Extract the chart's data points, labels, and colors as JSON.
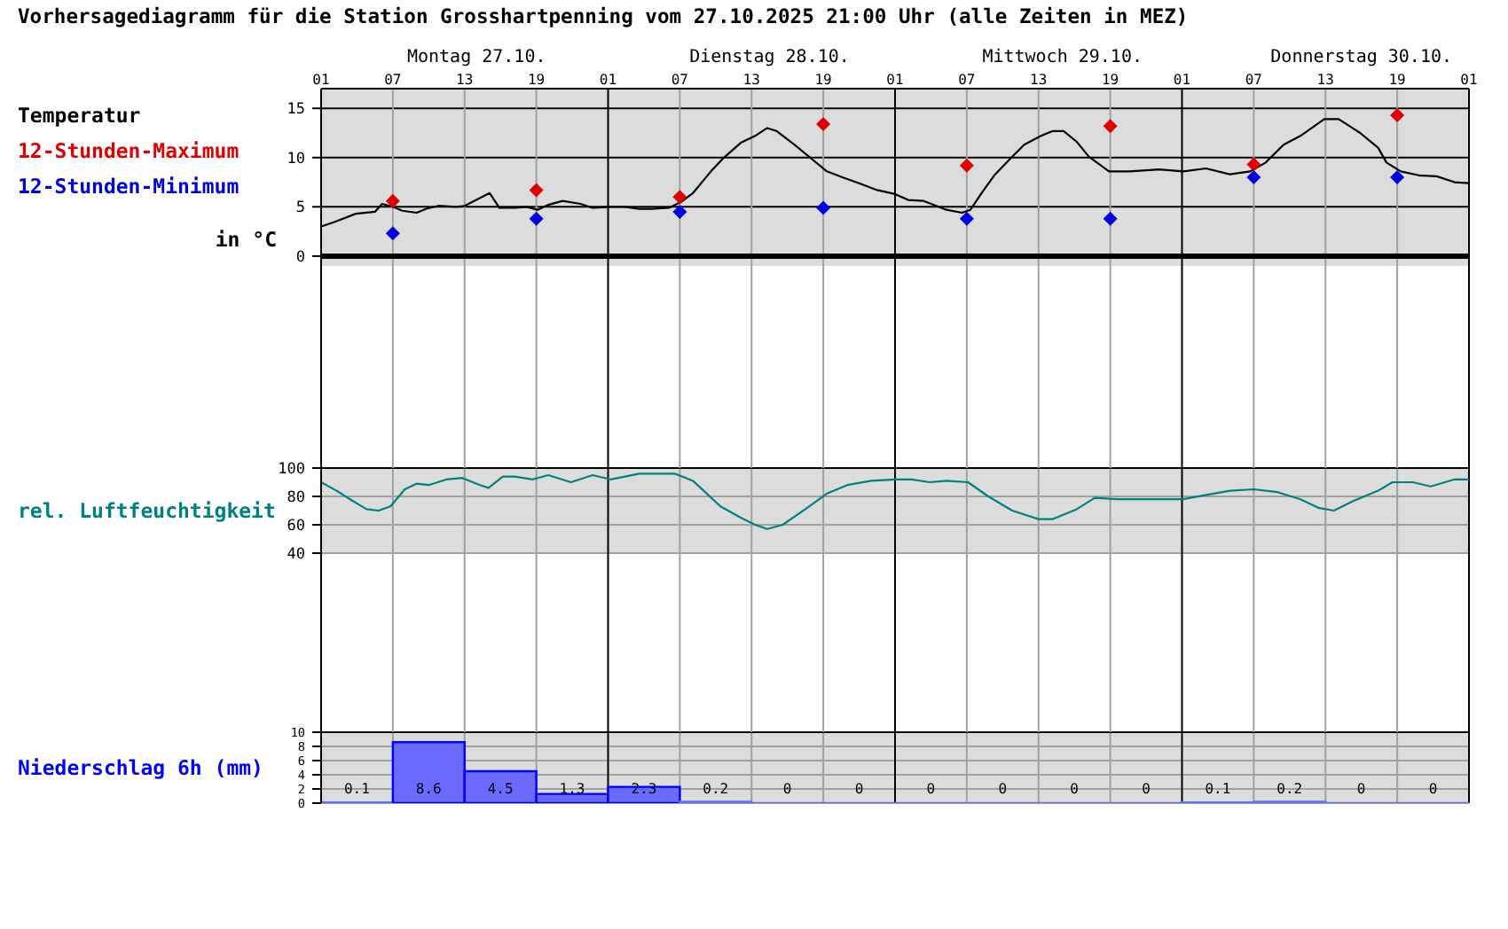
{
  "chart_data": [
    {
      "type": "line",
      "title": "Vorhersagediagramm für die Station Grosshartpenning vom 27.10.2025 21:00 Uhr (alle Zeiten in MEZ)",
      "ylabel": "in °C",
      "xlim": [
        "2025-10-27T01:00",
        "2025-10-31T01:00"
      ],
      "xticks": [
        {
          "value": "2025-10-27T01:00",
          "label": "01"
        },
        {
          "value": "2025-10-27T07:00",
          "label": "07"
        },
        {
          "value": "2025-10-27T13:00",
          "label": "13"
        },
        {
          "value": "2025-10-27T19:00",
          "label": "19"
        },
        {
          "value": "2025-10-28T01:00",
          "label": "01"
        },
        {
          "value": "2025-10-28T07:00",
          "label": "07"
        },
        {
          "value": "2025-10-28T13:00",
          "label": "13"
        },
        {
          "value": "2025-10-28T19:00",
          "label": "19"
        },
        {
          "value": "2025-10-29T01:00",
          "label": "01"
        },
        {
          "value": "2025-10-29T07:00",
          "label": "07"
        },
        {
          "value": "2025-10-29T13:00",
          "label": "13"
        },
        {
          "value": "2025-10-29T19:00",
          "label": "19"
        },
        {
          "value": "2025-10-30T01:00",
          "label": "01"
        },
        {
          "value": "2025-10-30T07:00",
          "label": "07"
        },
        {
          "value": "2025-10-30T13:00",
          "label": "13"
        },
        {
          "value": "2025-10-30T19:00",
          "label": "19"
        },
        {
          "value": "2025-10-31T01:00",
          "label": "01"
        }
      ],
      "x2lim": [
        "2025-10-27T01:00",
        "2025-10-31T01:00"
      ],
      "x2ticks": [
        {
          "value": "2025-10-27T14:00",
          "label": "Montag 27.10."
        },
        {
          "value": "2025-10-28T14:30",
          "label": "Dienstag 28.10."
        },
        {
          "value": "2025-10-29T15:00",
          "label": "Mittwoch 29.10."
        },
        {
          "value": "2025-10-30T16:00",
          "label": "Donnerstag 30.10."
        }
      ],
      "ylim": [
        -1,
        17
      ],
      "yticks": [
        0,
        5,
        10,
        15
      ],
      "grid": true,
      "legend": "left",
      "ref_lines": [
        {
          "axis": "y",
          "value": 0,
          "color": "#000000"
        }
      ],
      "series": [
        {
          "name": "Temperatur",
          "color": "#000000",
          "x": [
            "2025-10-27T01:00",
            "2025-10-27T02:12",
            "2025-10-27T03:54",
            "2025-10-27T05:30",
            "2025-10-27T06:06",
            "2025-10-27T07:00",
            "2025-10-27T07:48",
            "2025-10-27T09:00",
            "2025-10-27T09:48",
            "2025-10-27T10:48",
            "2025-10-27T12:18",
            "2025-10-27T13:00",
            "2025-10-27T14:18",
            "2025-10-27T15:06",
            "2025-10-27T15:54",
            "2025-10-27T17:12",
            "2025-10-27T18:12",
            "2025-10-27T19:06",
            "2025-10-27T20:00",
            "2025-10-27T21:12",
            "2025-10-27T22:42",
            "2025-10-27T23:42",
            "2025-10-28T01:12",
            "2025-10-28T02:24",
            "2025-10-28T03:36",
            "2025-10-28T04:36",
            "2025-10-28T06:06",
            "2025-10-28T07:06",
            "2025-10-28T08:06",
            "2025-10-28T09:36",
            "2025-10-28T10:36",
            "2025-10-28T12:06",
            "2025-10-28T13:18",
            "2025-10-28T14:18",
            "2025-10-28T15:06",
            "2025-10-28T16:36",
            "2025-10-28T18:06",
            "2025-10-28T19:18",
            "2025-10-28T20:36",
            "2025-10-28T22:00",
            "2025-10-28T23:30",
            "2025-10-29T01:00",
            "2025-10-29T02:06",
            "2025-10-29T03:24",
            "2025-10-29T05:18",
            "2025-10-29T06:36",
            "2025-10-29T07:18",
            "2025-10-29T08:18",
            "2025-10-29T09:18",
            "2025-10-29T10:48",
            "2025-10-29T11:48",
            "2025-10-29T13:12",
            "2025-10-29T14:12",
            "2025-10-29T15:06",
            "2025-10-29T16:12",
            "2025-10-29T17:12",
            "2025-10-29T18:54",
            "2025-10-29T20:36",
            "2025-10-29T23:06",
            "2025-10-30T01:06",
            "2025-10-30T03:00",
            "2025-10-30T05:00",
            "2025-10-30T06:42",
            "2025-10-30T08:00",
            "2025-10-30T09:30",
            "2025-10-30T10:54",
            "2025-10-30T12:54",
            "2025-10-30T14:06",
            "2025-10-30T15:54",
            "2025-10-30T17:24",
            "2025-10-30T18:06",
            "2025-10-30T19:18",
            "2025-10-30T20:48",
            "2025-10-30T22:18",
            "2025-10-30T23:48",
            "2025-10-31T01:00"
          ],
          "values": [
            3.0,
            3.5,
            4.3,
            4.5,
            5.3,
            5.0,
            4.6,
            4.4,
            4.8,
            5.1,
            5.0,
            5.1,
            5.9,
            6.4,
            4.9,
            4.9,
            5.0,
            4.7,
            5.2,
            5.6,
            5.3,
            4.9,
            5.0,
            5.0,
            4.8,
            4.8,
            4.9,
            5.5,
            6.4,
            8.6,
            9.9,
            11.5,
            12.2,
            13.0,
            12.7,
            11.3,
            9.8,
            8.6,
            8.0,
            7.4,
            6.7,
            6.3,
            5.7,
            5.6,
            4.7,
            4.4,
            4.7,
            6.5,
            8.2,
            10.1,
            11.3,
            12.2,
            12.7,
            12.7,
            11.6,
            10.1,
            8.6,
            8.6,
            8.8,
            8.6,
            8.9,
            8.3,
            8.6,
            9.5,
            11.3,
            12.2,
            13.9,
            13.9,
            12.5,
            11.0,
            9.5,
            8.6,
            8.2,
            8.1,
            7.5,
            7.4
          ]
        },
        {
          "name": "12-Stunden-Maximum",
          "type": "scatter",
          "marker": "diamond",
          "color": "#e00000",
          "x": [
            "2025-10-27T07:00",
            "2025-10-27T19:00",
            "2025-10-28T07:00",
            "2025-10-28T19:00",
            "2025-10-29T07:00",
            "2025-10-29T19:00",
            "2025-10-30T07:00",
            "2025-10-30T19:00"
          ],
          "values": [
            5.6,
            6.7,
            6.0,
            13.4,
            9.2,
            13.2,
            9.3,
            14.3
          ]
        },
        {
          "name": "12-Stunden-Minimum",
          "type": "scatter",
          "marker": "diamond",
          "color": "#0000e0",
          "x": [
            "2025-10-27T07:00",
            "2025-10-27T19:00",
            "2025-10-28T07:00",
            "2025-10-28T19:00",
            "2025-10-29T07:00",
            "2025-10-29T19:00",
            "2025-10-30T07:00",
            "2025-10-30T19:00"
          ],
          "values": [
            2.3,
            3.8,
            4.5,
            4.9,
            3.8,
            3.8,
            8.0,
            8.0
          ]
        }
      ]
    },
    {
      "type": "line",
      "xlim": [
        "2025-10-27T01:00",
        "2025-10-31T01:00"
      ],
      "xticks": [
        "2025-10-27T01:00",
        "2025-10-27T07:00",
        "2025-10-27T13:00",
        "2025-10-27T19:00",
        "2025-10-28T01:00",
        "2025-10-28T07:00",
        "2025-10-28T13:00",
        "2025-10-28T19:00",
        "2025-10-29T01:00",
        "2025-10-29T07:00",
        "2025-10-29T13:00",
        "2025-10-29T19:00",
        "2025-10-30T01:00",
        "2025-10-30T07:00",
        "2025-10-30T13:00",
        "2025-10-30T19:00",
        "2025-10-31T01:00"
      ],
      "tick_labels": "y",
      "ylim": [
        40,
        100
      ],
      "yticks": [
        40,
        60,
        80,
        100
      ],
      "grid": true,
      "legend": "left",
      "series": [
        {
          "name": "rel. Luftfeuchtigkeit",
          "color": "#008080",
          "x": [
            "2025-10-27T01:00",
            "2025-10-27T02:18",
            "2025-10-27T03:36",
            "2025-10-27T04:48",
            "2025-10-27T05:48",
            "2025-10-27T06:48",
            "2025-10-27T08:00",
            "2025-10-27T09:00",
            "2025-10-27T10:00",
            "2025-10-27T11:30",
            "2025-10-27T12:48",
            "2025-10-27T14:18",
            "2025-10-27T15:00",
            "2025-10-27T16:12",
            "2025-10-27T17:12",
            "2025-10-27T18:42",
            "2025-10-27T20:00",
            "2025-10-27T21:54",
            "2025-10-27T23:42",
            "2025-10-28T01:12",
            "2025-10-28T02:24",
            "2025-10-28T03:36",
            "2025-10-28T06:36",
            "2025-10-28T08:06",
            "2025-10-28T10:24",
            "2025-10-28T12:06",
            "2025-10-28T13:18",
            "2025-10-28T14:18",
            "2025-10-28T15:36",
            "2025-10-28T17:30",
            "2025-10-28T19:18",
            "2025-10-28T21:00",
            "2025-10-28T23:00",
            "2025-10-29T01:00",
            "2025-10-29T02:24",
            "2025-10-29T03:54",
            "2025-10-29T05:18",
            "2025-10-29T07:06",
            "2025-10-29T08:48",
            "2025-10-29T10:48",
            "2025-10-29T13:00",
            "2025-10-29T14:12",
            "2025-10-29T16:12",
            "2025-10-29T17:42",
            "2025-10-29T19:36",
            "2025-10-30T01:06",
            "2025-10-30T03:00",
            "2025-10-30T05:00",
            "2025-10-30T07:00",
            "2025-10-30T09:00",
            "2025-10-30T10:54",
            "2025-10-30T12:24",
            "2025-10-30T13:42",
            "2025-10-30T15:24",
            "2025-10-30T17:24",
            "2025-10-30T18:36",
            "2025-10-30T20:18",
            "2025-10-30T21:48",
            "2025-10-30T23:48",
            "2025-10-31T01:00"
          ],
          "values": [
            90,
            84,
            77,
            71,
            70,
            73,
            85,
            89,
            88,
            92,
            93,
            88,
            86,
            94,
            94,
            92,
            95,
            90,
            95,
            92,
            94,
            96,
            96,
            91,
            73,
            65,
            60,
            57,
            60,
            71,
            82,
            88,
            91,
            92,
            92,
            90,
            91,
            90,
            80,
            70,
            64,
            64,
            71,
            79,
            78,
            78,
            81,
            84,
            85,
            83,
            78,
            72,
            70,
            77,
            84,
            90,
            90,
            87,
            92,
            92
          ]
        }
      ]
    },
    {
      "type": "histogram",
      "xlim": [
        "2025-10-27T01:00",
        "2025-10-31T01:00"
      ],
      "xticks": [
        "2025-10-27T01:00",
        "2025-10-27T07:00",
        "2025-10-27T13:00",
        "2025-10-27T19:00",
        "2025-10-28T01:00",
        "2025-10-28T07:00",
        "2025-10-28T13:00",
        "2025-10-28T19:00",
        "2025-10-29T01:00",
        "2025-10-29T07:00",
        "2025-10-29T13:00",
        "2025-10-29T19:00",
        "2025-10-30T01:00",
        "2025-10-30T07:00",
        "2025-10-30T13:00",
        "2025-10-30T19:00",
        "2025-10-31T01:00"
      ],
      "tick_labels": "y",
      "ylim": [
        0,
        10
      ],
      "yticks": [
        0,
        2,
        4,
        6,
        8,
        10
      ],
      "grid": true,
      "legend": "left",
      "data_labels": true,
      "bins": [
        "2025-10-27T01:00",
        "2025-10-27T07:00",
        "2025-10-27T13:00",
        "2025-10-27T19:00",
        "2025-10-28T01:00",
        "2025-10-28T07:00",
        "2025-10-28T13:00",
        "2025-10-28T19:00",
        "2025-10-29T01:00",
        "2025-10-29T07:00",
        "2025-10-29T13:00",
        "2025-10-29T19:00",
        "2025-10-30T01:00",
        "2025-10-30T07:00",
        "2025-10-30T13:00",
        "2025-10-30T19:00",
        "2025-10-31T01:00"
      ],
      "series": [
        {
          "name": "Niederschlag 6h (mm)",
          "color": "#6a6aff",
          "values": [
            0.1,
            8.6,
            4.5,
            1.3,
            2.3,
            0.2,
            0,
            0,
            0,
            0,
            0,
            0,
            0.1,
            0.2,
            0,
            0
          ]
        }
      ]
    }
  ]
}
